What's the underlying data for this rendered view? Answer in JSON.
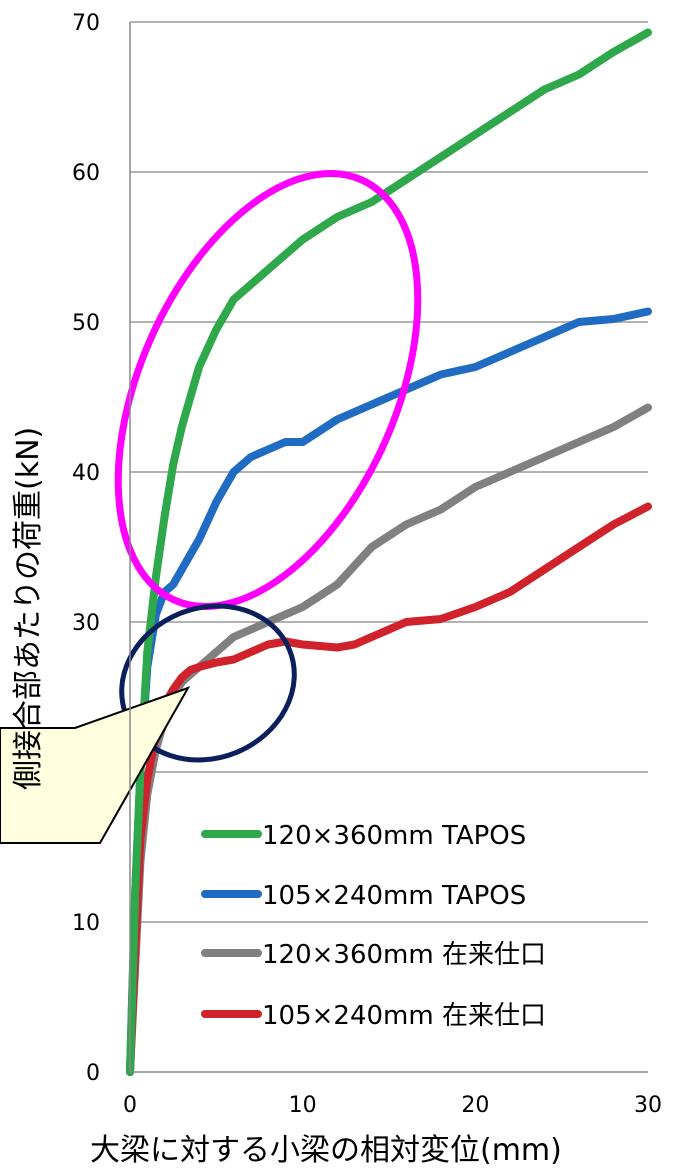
{
  "chart_data": {
    "type": "line",
    "xlabel": "大梁に対する小梁の相対変位(mm)",
    "ylabel": "側接合部あたりの荷重(kN)",
    "xlim": [
      0,
      30
    ],
    "ylim": [
      0,
      70
    ],
    "x_ticks": [
      0,
      10,
      20,
      30
    ],
    "y_ticks": [
      0,
      10,
      20,
      30,
      40,
      50,
      60,
      70
    ],
    "y_tick_labels": [
      "0",
      "10",
      "",
      "30",
      "40",
      "50",
      "60",
      "70"
    ],
    "grid": "horizontal",
    "legend_position": "bottom-right",
    "series": [
      {
        "name": "120×360mm TAPOS",
        "color": "#2ea84a",
        "x": [
          0,
          0.3,
          0.6,
          1.0,
          1.5,
          2.0,
          2.5,
          3.0,
          3.5,
          4.0,
          5.0,
          6.0,
          7.0,
          8.0,
          9.0,
          10.0,
          12.0,
          14.0,
          16.0,
          18.0,
          20.0,
          22.0,
          24.0,
          26.0,
          28.0,
          30.0
        ],
        "y": [
          0,
          12,
          20,
          28,
          33,
          37,
          40.5,
          43,
          45,
          47,
          49.5,
          51.5,
          52.5,
          53.5,
          54.5,
          55.5,
          57,
          58,
          59.5,
          61,
          62.5,
          64,
          65.5,
          66.5,
          68,
          69.3
        ]
      },
      {
        "name": "105×240mm TAPOS",
        "color": "#1f6cc2",
        "x": [
          0,
          0.3,
          0.6,
          1.0,
          1.5,
          2.0,
          2.5,
          3.0,
          3.5,
          4.0,
          5.0,
          6.0,
          7.0,
          8.0,
          9.0,
          10.0,
          12.0,
          14.0,
          16.0,
          18.0,
          20.0,
          22.0,
          24.0,
          26.0,
          28.0,
          30.0
        ],
        "y": [
          0,
          12,
          20,
          27,
          30.5,
          32,
          32.5,
          33.5,
          34.5,
          35.5,
          38,
          40,
          41,
          41.5,
          42,
          42,
          43.5,
          44.5,
          45.5,
          46.5,
          47,
          48,
          49,
          50,
          50.2,
          50.7
        ]
      },
      {
        "name": "120×360mm 在来仕口",
        "color": "#808080",
        "x": [
          0,
          0.3,
          0.6,
          1.0,
          1.5,
          2.0,
          2.5,
          3.0,
          3.5,
          4.0,
          5.0,
          6.0,
          7.0,
          8.0,
          9.0,
          10.0,
          12.0,
          14.0,
          16.0,
          18.0,
          20.0,
          22.0,
          24.0,
          26.0,
          28.0,
          30.0
        ],
        "y": [
          0,
          7,
          14,
          18.5,
          21.5,
          23.5,
          25,
          26,
          26.5,
          27,
          28,
          29,
          29.5,
          30,
          30.5,
          31,
          32.5,
          35,
          36.5,
          37.5,
          39,
          40,
          41,
          42,
          43,
          44.3
        ]
      },
      {
        "name": "105×240mm 在来仕口",
        "color": "#d0222a",
        "x": [
          0,
          0.3,
          0.6,
          1.0,
          1.5,
          2.0,
          2.5,
          3.0,
          3.5,
          4.0,
          5.0,
          6.0,
          7.0,
          8.0,
          9.0,
          10.0,
          12.0,
          13.0,
          14.0,
          16.0,
          18.0,
          20.0,
          22.0,
          24.0,
          26.0,
          28.0,
          30.0
        ],
        "y": [
          0,
          8,
          15.5,
          19.5,
          22.5,
          24.5,
          25.5,
          26.3,
          26.8,
          27,
          27.3,
          27.5,
          28,
          28.5,
          28.7,
          28.5,
          28.3,
          28.5,
          29,
          30,
          30.2,
          31,
          32,
          33.5,
          35,
          36.5,
          37.7
        ]
      }
    ]
  }
}
